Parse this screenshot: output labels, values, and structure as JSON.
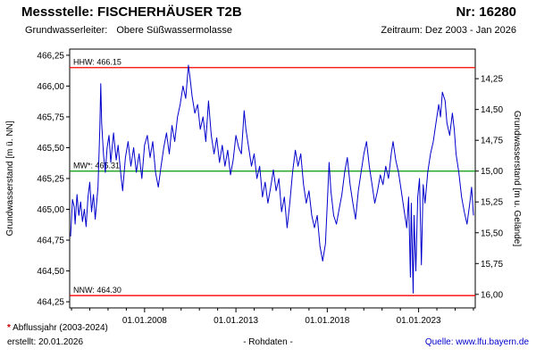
{
  "header": {
    "station_label": "Messstelle: FISCHERHÄUSER T2B",
    "number_label": "Nr: 16280",
    "aquifer_label": "Grundwasserleiter:",
    "aquifer_value": "Obere Süßwassermolasse",
    "period_label": "Zeitraum: Dez 2003 - Jan 2026"
  },
  "footer": {
    "footnote_marker": "*",
    "footnote_text": "Abflussjahr (2003-2024)",
    "created_label": "erstellt: 20.01.2026",
    "data_type_label": "- Rohdaten -",
    "source_label": "Quelle: www.lfu.bayern.de"
  },
  "colors": {
    "series": "#0000cc",
    "extreme_lines": "#ff0000",
    "mean_line": "#009900",
    "link": "#0000cc",
    "axis": "#000000"
  },
  "chart_data": {
    "type": "line",
    "title": "",
    "x_axis": {
      "range": [
        2003.9,
        2026.1
      ],
      "tick_positions": [
        2008,
        2013,
        2018,
        2023
      ],
      "tick_labels": [
        "01.01.2008",
        "01.01.2013",
        "01.01.2018",
        "01.01.2023"
      ],
      "minor_tick_interval_years": 1
    },
    "y_axis_left": {
      "label": "Grundwasserstand [m ü. NN]",
      "range": [
        464.2,
        466.3
      ],
      "ticks": [
        466.25,
        466.0,
        465.75,
        465.5,
        465.25,
        465.0,
        464.75,
        464.5,
        464.25
      ],
      "tick_labels": [
        "466,25",
        "466,00",
        "465,75",
        "465,50",
        "465,25",
        "465,00",
        "464,75",
        "464,50",
        "464,25"
      ]
    },
    "y_axis_right": {
      "label": "Grundwasserstand [m u. Gelände]",
      "ground_elevation_m": 480.31,
      "ticks": [
        14.25,
        14.5,
        14.75,
        15.0,
        15.25,
        15.5,
        15.75,
        16.0
      ],
      "tick_labels": [
        "14,25",
        "14,50",
        "14,75",
        "15,00",
        "15,25",
        "15,50",
        "15,75",
        "16,00"
      ]
    },
    "reference_lines": [
      {
        "name": "HHW",
        "label": "HHW: 466.15",
        "value": 466.15,
        "color": "#ff0000"
      },
      {
        "name": "MW",
        "label": "MW*: 465.31",
        "value": 465.31,
        "color": "#009900"
      },
      {
        "name": "NNW",
        "label": "NNW: 464.30",
        "value": 464.3,
        "color": "#ff0000"
      }
    ],
    "legend": "grid off, plain white plot area, black frame",
    "series": [
      {
        "name": "Grundwasserstand Rohdaten",
        "color": "#0000cc",
        "points": [
          [
            2003.95,
            464.78
          ],
          [
            2004.0,
            464.92
          ],
          [
            2004.05,
            465.08
          ],
          [
            2004.15,
            465.02
          ],
          [
            2004.2,
            464.88
          ],
          [
            2004.3,
            465.12
          ],
          [
            2004.4,
            464.95
          ],
          [
            2004.5,
            465.06
          ],
          [
            2004.6,
            464.9
          ],
          [
            2004.7,
            465.0
          ],
          [
            2004.8,
            464.86
          ],
          [
            2004.9,
            465.1
          ],
          [
            2005.0,
            465.22
          ],
          [
            2005.1,
            464.98
          ],
          [
            2005.2,
            465.12
          ],
          [
            2005.3,
            464.92
          ],
          [
            2005.45,
            465.18
          ],
          [
            2005.55,
            465.65
          ],
          [
            2005.6,
            466.02
          ],
          [
            2005.65,
            465.7
          ],
          [
            2005.75,
            465.45
          ],
          [
            2005.85,
            465.3
          ],
          [
            2005.95,
            465.5
          ],
          [
            2006.05,
            465.6
          ],
          [
            2006.15,
            465.38
          ],
          [
            2006.3,
            465.62
          ],
          [
            2006.45,
            465.4
          ],
          [
            2006.55,
            465.52
          ],
          [
            2006.7,
            465.28
          ],
          [
            2006.8,
            465.15
          ],
          [
            2006.95,
            465.42
          ],
          [
            2007.1,
            465.55
          ],
          [
            2007.25,
            465.35
          ],
          [
            2007.4,
            465.5
          ],
          [
            2007.55,
            465.3
          ],
          [
            2007.7,
            465.45
          ],
          [
            2007.85,
            465.25
          ],
          [
            2008.0,
            465.52
          ],
          [
            2008.15,
            465.6
          ],
          [
            2008.3,
            465.42
          ],
          [
            2008.45,
            465.55
          ],
          [
            2008.6,
            465.3
          ],
          [
            2008.75,
            465.18
          ],
          [
            2008.9,
            465.35
          ],
          [
            2009.05,
            465.5
          ],
          [
            2009.2,
            465.62
          ],
          [
            2009.35,
            465.45
          ],
          [
            2009.5,
            465.68
          ],
          [
            2009.65,
            465.55
          ],
          [
            2009.8,
            465.75
          ],
          [
            2009.95,
            465.85
          ],
          [
            2010.1,
            466.0
          ],
          [
            2010.25,
            465.9
          ],
          [
            2010.4,
            466.17
          ],
          [
            2010.5,
            466.05
          ],
          [
            2010.6,
            465.92
          ],
          [
            2010.75,
            465.78
          ],
          [
            2010.9,
            465.85
          ],
          [
            2011.05,
            465.65
          ],
          [
            2011.2,
            465.75
          ],
          [
            2011.35,
            465.55
          ],
          [
            2011.5,
            465.88
          ],
          [
            2011.65,
            465.6
          ],
          [
            2011.8,
            465.45
          ],
          [
            2011.95,
            465.58
          ],
          [
            2012.1,
            465.38
          ],
          [
            2012.25,
            465.52
          ],
          [
            2012.4,
            465.35
          ],
          [
            2012.55,
            465.48
          ],
          [
            2012.7,
            465.28
          ],
          [
            2012.85,
            465.4
          ],
          [
            2013.0,
            465.6
          ],
          [
            2013.15,
            465.5
          ],
          [
            2013.3,
            465.45
          ],
          [
            2013.45,
            465.8
          ],
          [
            2013.55,
            465.65
          ],
          [
            2013.7,
            465.5
          ],
          [
            2013.85,
            465.35
          ],
          [
            2014.0,
            465.45
          ],
          [
            2014.15,
            465.25
          ],
          [
            2014.3,
            465.35
          ],
          [
            2014.45,
            465.1
          ],
          [
            2014.6,
            465.22
          ],
          [
            2014.75,
            465.05
          ],
          [
            2014.9,
            465.18
          ],
          [
            2015.05,
            465.32
          ],
          [
            2015.2,
            465.15
          ],
          [
            2015.35,
            465.25
          ],
          [
            2015.5,
            464.98
          ],
          [
            2015.65,
            465.1
          ],
          [
            2015.8,
            464.85
          ],
          [
            2015.95,
            465.05
          ],
          [
            2016.1,
            465.3
          ],
          [
            2016.25,
            465.48
          ],
          [
            2016.4,
            465.35
          ],
          [
            2016.55,
            465.45
          ],
          [
            2016.7,
            465.2
          ],
          [
            2016.85,
            465.05
          ],
          [
            2017.0,
            465.15
          ],
          [
            2017.15,
            464.95
          ],
          [
            2017.3,
            464.85
          ],
          [
            2017.45,
            464.95
          ],
          [
            2017.6,
            464.7
          ],
          [
            2017.75,
            464.58
          ],
          [
            2017.9,
            464.72
          ],
          [
            2018.0,
            465.05
          ],
          [
            2018.1,
            465.38
          ],
          [
            2018.2,
            465.15
          ],
          [
            2018.35,
            464.95
          ],
          [
            2018.5,
            464.88
          ],
          [
            2018.65,
            465.0
          ],
          [
            2018.8,
            465.12
          ],
          [
            2018.95,
            465.3
          ],
          [
            2019.1,
            465.42
          ],
          [
            2019.25,
            465.2
          ],
          [
            2019.4,
            465.05
          ],
          [
            2019.55,
            464.92
          ],
          [
            2019.7,
            465.15
          ],
          [
            2019.85,
            465.3
          ],
          [
            2020.0,
            465.45
          ],
          [
            2020.15,
            465.55
          ],
          [
            2020.3,
            465.35
          ],
          [
            2020.45,
            465.2
          ],
          [
            2020.6,
            465.05
          ],
          [
            2020.75,
            465.15
          ],
          [
            2020.9,
            465.28
          ],
          [
            2021.05,
            465.2
          ],
          [
            2021.2,
            465.35
          ],
          [
            2021.35,
            465.25
          ],
          [
            2021.5,
            465.45
          ],
          [
            2021.6,
            465.55
          ],
          [
            2021.75,
            465.4
          ],
          [
            2021.9,
            465.3
          ],
          [
            2022.05,
            465.15
          ],
          [
            2022.2,
            465.0
          ],
          [
            2022.35,
            464.85
          ],
          [
            2022.45,
            465.1
          ],
          [
            2022.55,
            464.45
          ],
          [
            2022.6,
            465.05
          ],
          [
            2022.7,
            464.32
          ],
          [
            2022.75,
            464.95
          ],
          [
            2022.85,
            464.5
          ],
          [
            2022.95,
            465.1
          ],
          [
            2023.05,
            465.25
          ],
          [
            2023.15,
            464.55
          ],
          [
            2023.25,
            465.2
          ],
          [
            2023.35,
            465.05
          ],
          [
            2023.5,
            465.3
          ],
          [
            2023.65,
            465.45
          ],
          [
            2023.8,
            465.55
          ],
          [
            2023.95,
            465.7
          ],
          [
            2024.1,
            465.85
          ],
          [
            2024.2,
            465.75
          ],
          [
            2024.3,
            465.95
          ],
          [
            2024.45,
            465.88
          ],
          [
            2024.55,
            465.7
          ],
          [
            2024.7,
            465.6
          ],
          [
            2024.85,
            465.78
          ],
          [
            2024.95,
            465.65
          ],
          [
            2025.05,
            465.45
          ],
          [
            2025.2,
            465.3
          ],
          [
            2025.35,
            465.1
          ],
          [
            2025.5,
            464.98
          ],
          [
            2025.65,
            464.88
          ],
          [
            2025.8,
            465.05
          ],
          [
            2025.9,
            465.18
          ],
          [
            2026.0,
            464.95
          ]
        ]
      }
    ]
  }
}
